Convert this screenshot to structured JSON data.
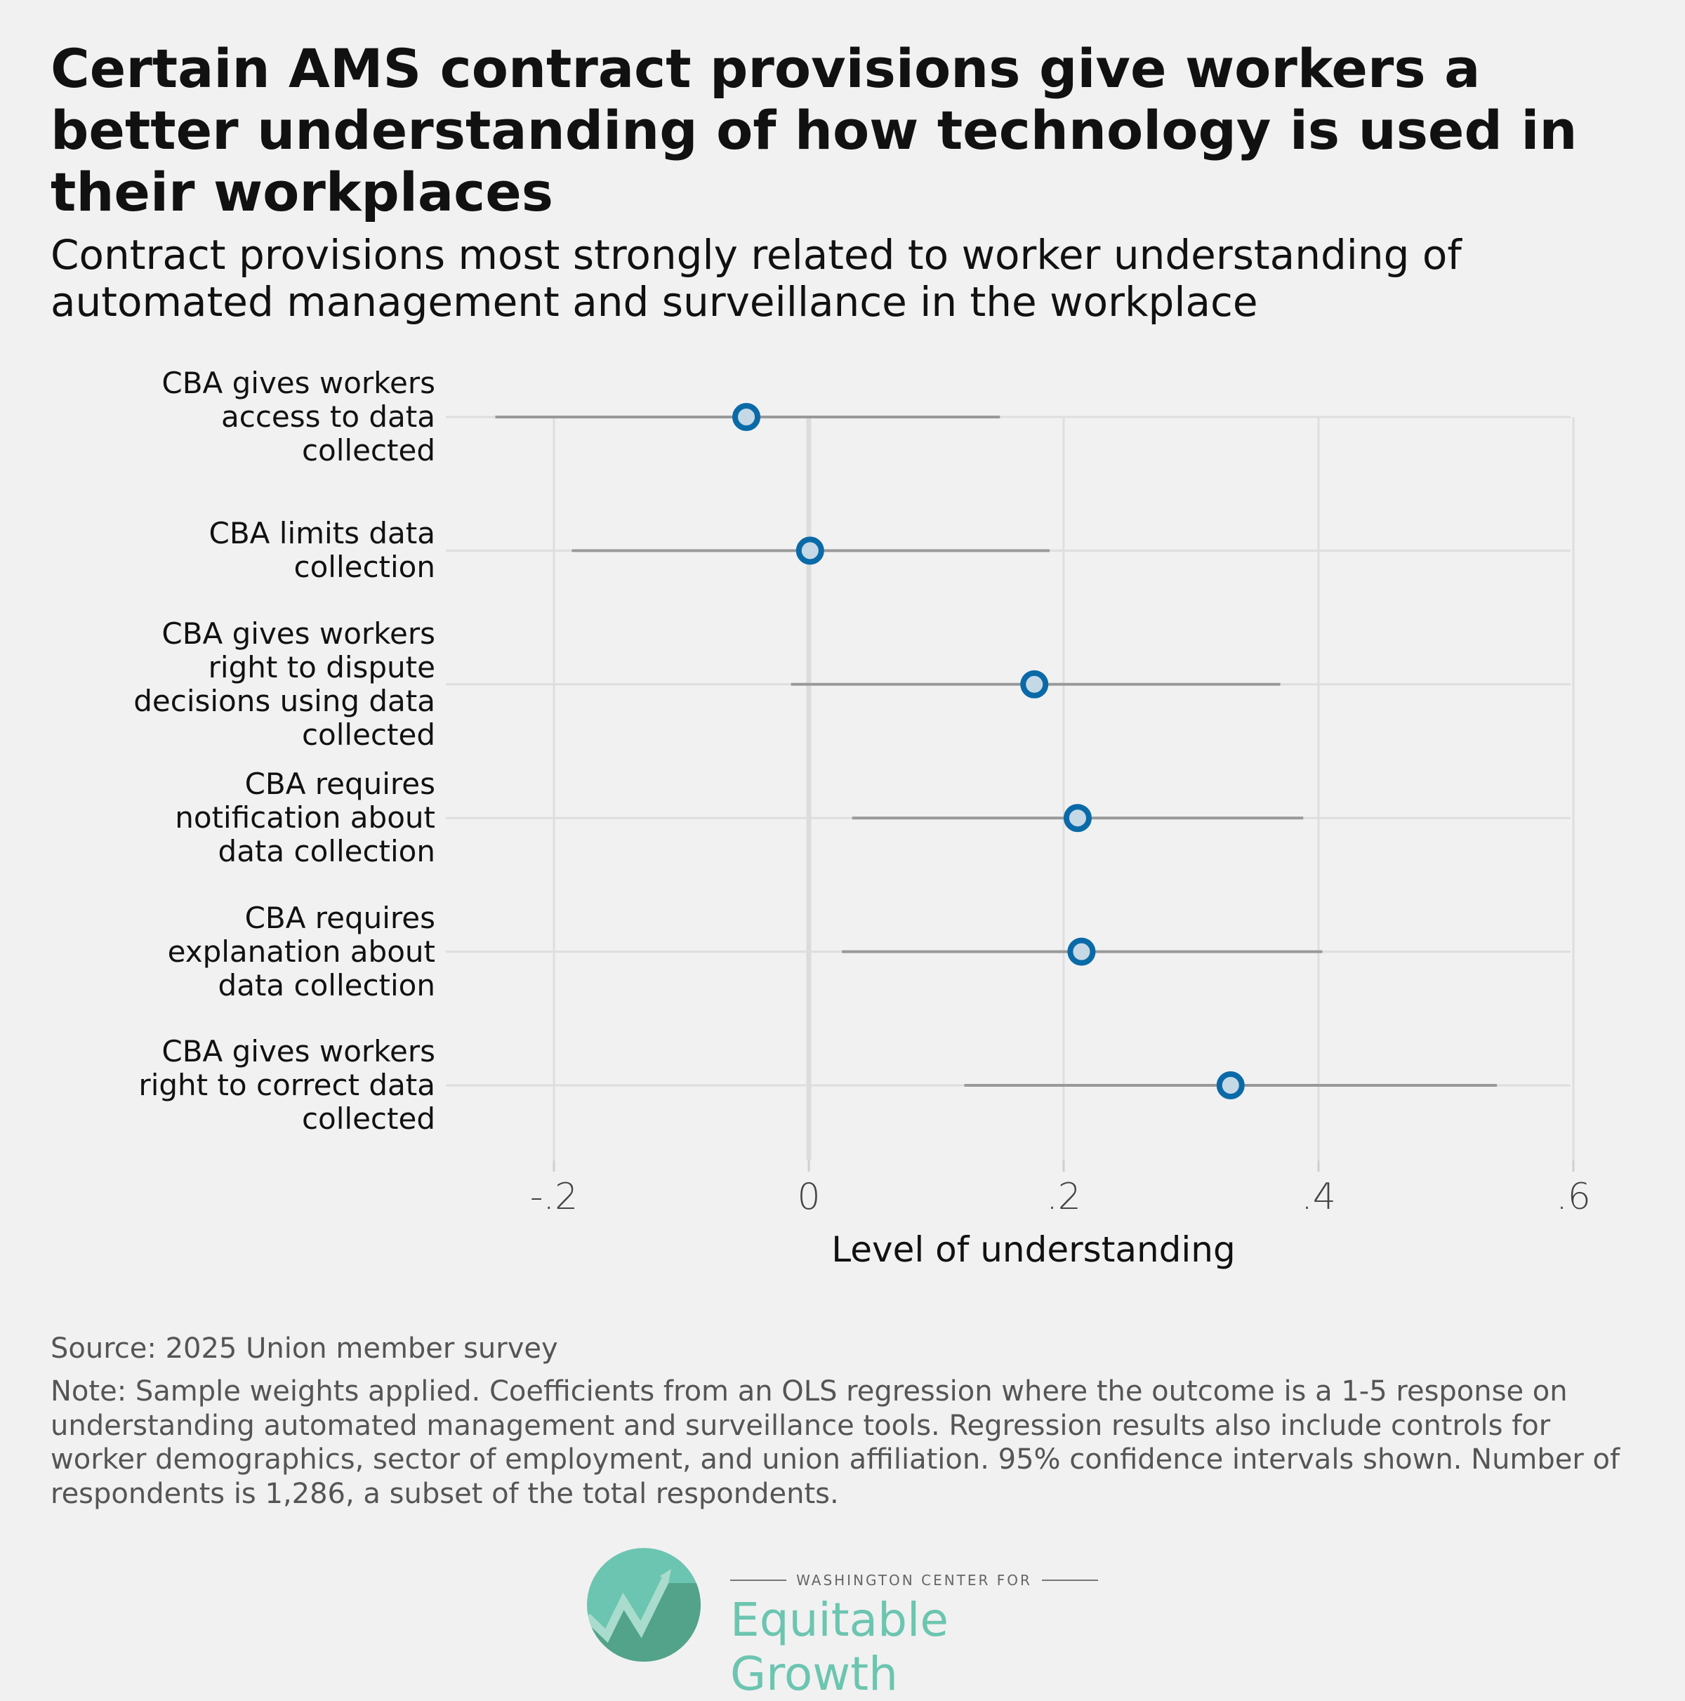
{
  "chart_data": {
    "type": "dot-whisker",
    "title": "Certain AMS contract provisions give workers a better understanding of how technology is used in their workplaces",
    "subtitle": "Contract provisions most strongly related to worker understanding of automated management and surveillance in the workplace",
    "xlabel": "Level of understanding",
    "xlim": [
      -0.27,
      0.6
    ],
    "xticks": [
      -0.2,
      0,
      0.2,
      0.4,
      0.6
    ],
    "xtick_labels": [
      "-.2",
      "0",
      ".2",
      ".4",
      ".6"
    ],
    "grid": true,
    "categories": [
      "CBA gives workers access to data collected",
      "CBA limits data collection",
      "CBA gives workers right to dispute decisions using data collected",
      "CBA requires notification about data collection",
      "CBA requires explanation about data collection",
      "CBA gives workers right to correct data collected"
    ],
    "category_lines": [
      [
        "CBA gives workers",
        "access to data",
        "collected"
      ],
      [
        "CBA limits data",
        "collection"
      ],
      [
        "CBA gives workers",
        "right to dispute",
        "decisions using data",
        "collected"
      ],
      [
        "CBA requires",
        "notification about",
        "data collection"
      ],
      [
        "CBA requires",
        "explanation about",
        "data collection"
      ],
      [
        "CBA gives workers",
        "right to correct data",
        "collected"
      ]
    ],
    "values": [
      -0.049,
      0.001,
      0.177,
      0.211,
      0.214,
      0.331
    ],
    "ci_low": [
      -0.246,
      -0.186,
      -0.014,
      0.034,
      0.026,
      0.122
    ],
    "ci_high": [
      0.15,
      0.189,
      0.37,
      0.388,
      0.403,
      0.54
    ],
    "confidence_level": "95%"
  },
  "colors": {
    "point_stroke": "#0a6aa8",
    "point_fill": "#c5d8e6",
    "ci_line": "#999999",
    "grid": "#dedede",
    "logo": "#6cc5b0"
  },
  "footer": {
    "source": "Source: 2025 Union member survey",
    "note": "Note: Sample weights applied. Coefficients from an OLS regression where the outcome is a 1-5 response on understanding automated management and surveillance tools. Regression results also include controls for worker demographics, sector of employment, and union affiliation. 95% confidence intervals shown. Number of respondents is 1,286, a subset of the total respondents."
  },
  "logo": {
    "top_text": "WASHINGTON CENTER FOR",
    "main_text": "Equitable Growth"
  }
}
